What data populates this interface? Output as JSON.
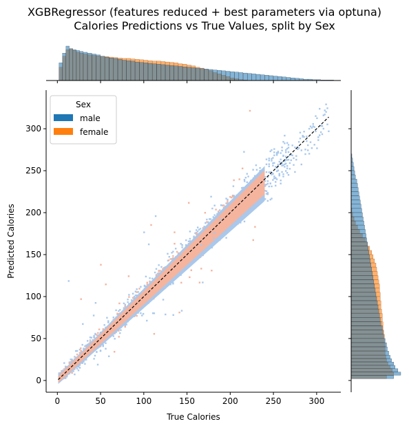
{
  "title_lines": [
    "XGBRegressor (features reduced + best parameters via optuna)",
    "Calories Predictions vs True Values, split by Sex"
  ],
  "colors": {
    "male": "#1f77b4",
    "female": "#ff7f0e",
    "male_joint": "#a9c8ec",
    "female_joint": "#f4b49e",
    "diagonal": "#000000"
  },
  "chart_data": {
    "type": "heatmap",
    "xlabel": "True Calories",
    "ylabel": "Predicted Calories",
    "xlim": [
      -13,
      328
    ],
    "ylim": [
      -14,
      346
    ],
    "xticks": [
      0,
      50,
      100,
      150,
      200,
      250,
      300
    ],
    "yticks": [
      0,
      50,
      100,
      150,
      200,
      250,
      300
    ],
    "grid": false,
    "legend": {
      "title": "Sex",
      "entries": [
        "male",
        "female"
      ],
      "placement": "top-left"
    },
    "diagonal_line": {
      "from": [
        1,
        1
      ],
      "to": [
        314,
        314
      ],
      "style": "dashed"
    },
    "series": [
      {
        "name": "male",
        "x_range": [
          1,
          314
        ],
        "y_range": [
          0,
          332
        ],
        "spread": 9
      },
      {
        "name": "female",
        "x_range": [
          1,
          240
        ],
        "y_range": [
          1,
          222
        ],
        "spread": 6
      }
    ],
    "marginal_x": {
      "type": "histogram",
      "x": [
        2,
        6,
        10,
        14,
        18,
        22,
        26,
        30,
        35,
        40,
        45,
        50,
        55,
        60,
        65,
        70,
        75,
        80,
        85,
        90,
        95,
        100,
        105,
        110,
        115,
        120,
        125,
        130,
        135,
        140,
        145,
        150,
        155,
        160,
        165,
        170,
        175,
        180,
        185,
        190,
        195,
        200,
        205,
        210,
        215,
        220,
        225,
        230,
        235,
        240,
        245,
        250,
        255,
        260,
        265,
        270,
        275,
        280,
        285,
        290,
        295,
        300,
        305,
        310,
        315
      ],
      "male": [
        40,
        62,
        78,
        72,
        70,
        68,
        66,
        64,
        62,
        60,
        58,
        55,
        53,
        51,
        50,
        48,
        46,
        45,
        44,
        42,
        41,
        40,
        39,
        38,
        37,
        36,
        35,
        34,
        33,
        32,
        31,
        30,
        29,
        28,
        27,
        26,
        25,
        24,
        23,
        22,
        21,
        20,
        19,
        18,
        17,
        16,
        15,
        14,
        13,
        12,
        11,
        10,
        9,
        8,
        7,
        6,
        5,
        4,
        3,
        3,
        2,
        2,
        1,
        1,
        1
      ],
      "female": [
        30,
        55,
        70,
        72,
        68,
        64,
        62,
        60,
        58,
        57,
        56,
        55,
        54,
        53,
        52,
        51,
        50,
        50,
        49,
        48,
        47,
        46,
        45,
        44,
        44,
        43,
        42,
        41,
        40,
        38,
        37,
        35,
        33,
        30,
        28,
        25,
        22,
        18,
        15,
        12,
        9,
        6,
        4,
        2,
        1,
        0,
        0,
        0,
        0,
        0,
        0,
        0,
        0,
        0,
        0,
        0,
        0,
        0,
        0,
        0,
        0,
        0,
        0,
        0,
        0
      ]
    },
    "marginal_y": {
      "type": "histogram",
      "y": [
        2,
        6,
        10,
        14,
        18,
        22,
        26,
        30,
        35,
        40,
        45,
        50,
        55,
        60,
        65,
        70,
        75,
        80,
        85,
        90,
        95,
        100,
        105,
        110,
        115,
        120,
        125,
        130,
        135,
        140,
        145,
        150,
        155,
        160,
        165,
        170,
        175,
        180,
        185,
        190,
        195,
        200,
        205,
        210,
        215,
        220,
        225,
        230,
        235,
        240,
        245,
        250,
        255,
        260,
        265
      ],
      "male": [
        60,
        70,
        66,
        62,
        60,
        57,
        55,
        53,
        51,
        50,
        48,
        46,
        45,
        44,
        42,
        41,
        40,
        39,
        38,
        37,
        36,
        35,
        34,
        33,
        32,
        31,
        30,
        29,
        28,
        27,
        26,
        25,
        24,
        23,
        22,
        21,
        20,
        19,
        18,
        17,
        16,
        15,
        14,
        13,
        12,
        11,
        10,
        9,
        8,
        6,
        5,
        4,
        3,
        2,
        1
      ],
      "female": [
        50,
        60,
        58,
        55,
        52,
        50,
        49,
        48,
        48,
        48,
        47,
        47,
        46,
        45,
        45,
        44,
        44,
        43,
        42,
        42,
        41,
        41,
        40,
        40,
        39,
        38,
        37,
        36,
        35,
        33,
        31,
        29,
        26,
        23,
        20,
        16,
        12,
        9,
        6,
        4,
        2,
        1,
        0,
        0,
        0,
        0,
        0,
        0,
        0,
        0,
        0,
        0,
        0,
        0,
        0
      ]
    }
  }
}
